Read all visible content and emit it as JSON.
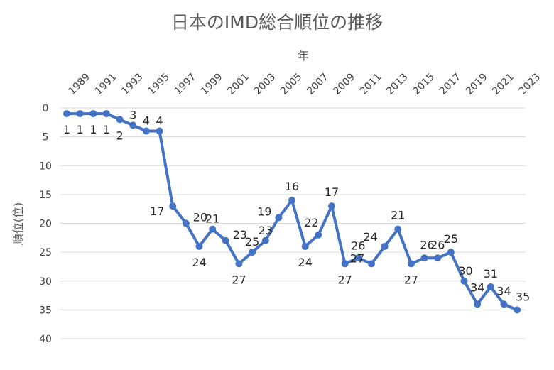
{
  "chart_data": {
    "type": "line",
    "title": "日本のIMD総合順位の推移",
    "xlabel": "年",
    "ylabel": "順位(位)",
    "ylim": [
      0,
      40
    ],
    "y_reversed": true,
    "yticks": [
      0,
      5,
      10,
      15,
      20,
      25,
      30,
      35,
      40
    ],
    "xtick_labels": [
      "1989",
      "1991",
      "1993",
      "1995",
      "1997",
      "1999",
      "2001",
      "2003",
      "2005",
      "2007",
      "2009",
      "2011",
      "2013",
      "2015",
      "2017",
      "2019",
      "2021",
      "2023"
    ],
    "grid": true,
    "legend": "none",
    "series": [
      {
        "x": [
          1989,
          1990,
          1991,
          1992,
          1993,
          1994,
          1995,
          1996,
          1997,
          1998,
          1999,
          2000,
          2001,
          2002,
          2003,
          2004,
          2005,
          2006,
          2007,
          2008,
          2009,
          2010,
          2011,
          2012,
          2013,
          2014,
          2015,
          2016,
          2017,
          2018,
          2019,
          2020,
          2021,
          2022,
          2023
        ],
        "values": [
          1,
          1,
          1,
          1,
          2,
          3,
          4,
          4,
          17,
          20,
          24,
          21,
          23,
          27,
          25,
          23,
          19,
          16,
          24,
          22,
          17,
          27,
          26,
          27,
          24,
          21,
          27,
          26,
          26,
          25,
          30,
          34,
          31,
          34,
          35
        ]
      }
    ],
    "colors": {
      "series": "#4472c4",
      "grid": "#d9d9d9"
    }
  }
}
